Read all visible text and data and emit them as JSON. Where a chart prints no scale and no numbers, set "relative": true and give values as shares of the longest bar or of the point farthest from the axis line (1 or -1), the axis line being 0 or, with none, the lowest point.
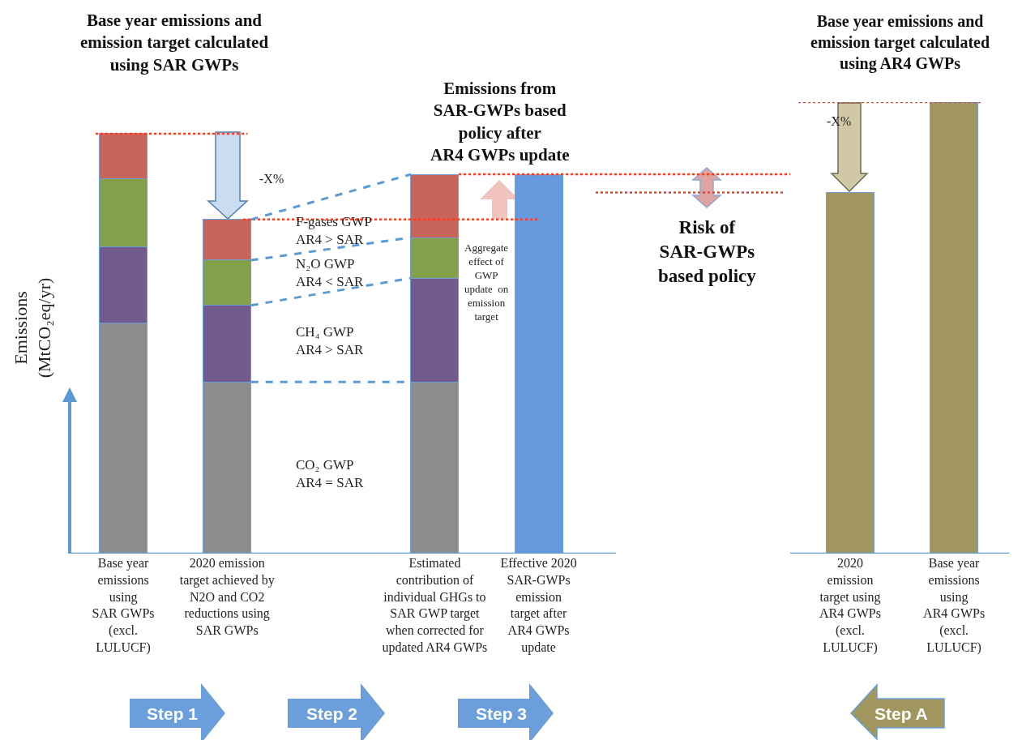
{
  "chart_data": {
    "type": "bar",
    "relative": true,
    "stacked": true,
    "title": "Base year emissions and\nemission target calculated\nusing SAR GWPs",
    "ylabel": "Emissions\n(MtCO₂eq/yr)",
    "categories": [
      "Base year\nemissions\nusing\nSAR GWPs\n(excl.\nLULUCF)",
      "2020 emission\ntarget achieved by\nN2O and CO2\nreductions using\nSAR GWPs",
      null,
      "Estimated\ncontribution of\nindividual GHGs to\nSAR GWP target\nwhen corrected for\nupdated AR4 GWPs",
      "Effective 2020\nSAR-GWPs\nemission\ntarget after\nAR4 GWPs\nupdate",
      null,
      null,
      "2020\nemission\ntarget using\nAR4 GWPs\n(excl.\nLULUCF)",
      "Base year\nemissions\nusing\nAR4 GWPs\n(excl.\nLULUCF)"
    ],
    "series": [
      {
        "color": "#8c8c8c",
        "values": [
          0.51,
          0.38,
          null,
          0.38,
          null,
          null,
          null,
          null,
          null
        ]
      },
      {
        "color": "#725a8c",
        "values": [
          0.17,
          0.17,
          null,
          0.23,
          null,
          null,
          null,
          null,
          null
        ]
      },
      {
        "color": "#84a04a",
        "values": [
          0.15,
          0.1,
          null,
          0.09,
          null,
          null,
          null,
          null,
          null
        ]
      },
      {
        "color": "#c9645a",
        "values": [
          0.1,
          0.09,
          null,
          0.14,
          null,
          null,
          null,
          null,
          null
        ]
      },
      {
        "color": "#6699dd",
        "values": [
          null,
          null,
          null,
          null,
          0.84,
          null,
          null,
          null,
          null
        ]
      },
      {
        "color": "#a0965e",
        "values": [
          null,
          null,
          null,
          null,
          null,
          null,
          null,
          0.8,
          1.0
        ]
      }
    ],
    "ref_lines": [
      {
        "axis": "y",
        "value": 0.93,
        "color": "#ff3b1f",
        "line_style": "dotted"
      },
      {
        "axis": "y",
        "value": 0.74,
        "color": "#ff3b1f",
        "line_style": "dotted"
      },
      {
        "axis": "y",
        "value": 0.84,
        "color": "#ff3b1f",
        "line_style": "dotted"
      },
      {
        "axis": "y",
        "value": 0.8,
        "color": "#ff3b1f",
        "line_style": "dotted"
      },
      {
        "axis": "y",
        "value": 1.0,
        "color": "#ff3b1f",
        "line_style": "dotted"
      }
    ],
    "annotations": [
      "Emissions from\nSAR-GWPs based\npolicy after\nAR4 GWPs update",
      "Base year emissions and\nemission target calculated\nusing AR4 GWPs",
      "-X%",
      "-X%",
      "F-gases GWP\nAR4 > SAR",
      "N₂O GWP\nAR4 < SAR",
      "CH₄ GWP\nAR4 > SAR",
      "CO₂ GWP\nAR4 = SAR",
      "Aggregate\neffect of\nGWP\nupdate  on\nemission\ntarget",
      "Risk of\nSAR-GWPs\nbased policy",
      "Step 1",
      "Step 2",
      "Step 3",
      "Step A"
    ]
  }
}
